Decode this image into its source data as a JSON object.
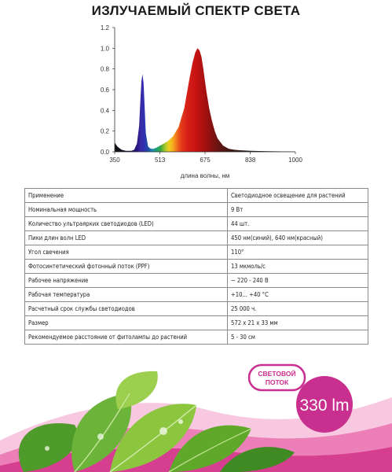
{
  "title": "ИЗЛУЧАЕМЫЙ СПЕКТР СВЕТА",
  "chart_data": {
    "type": "area",
    "xlabel": "длина волны, нм",
    "ylabel": "",
    "x_ticks": [
      350,
      513,
      675,
      838,
      1000
    ],
    "y_ticks": [
      "0.0",
      "0.2",
      "0.4",
      "0.6",
      "0.8",
      "1.0",
      "1.2"
    ],
    "xlim": [
      350,
      1000
    ],
    "ylim": [
      0,
      1.2
    ],
    "grid": false,
    "legend": "none",
    "series": [
      {
        "x": [
          350,
          360,
          375,
          390,
          410,
          420,
          430,
          438,
          442,
          446,
          450,
          454,
          458,
          462,
          470,
          480,
          490,
          500,
          520,
          540,
          560,
          580,
          600,
          620,
          630,
          640,
          648,
          655,
          662,
          670,
          680,
          690,
          700,
          710,
          720,
          740,
          760,
          780,
          800,
          840,
          900,
          1000
        ],
        "y": [
          0.09,
          0.05,
          0.02,
          0.01,
          0.01,
          0.02,
          0.08,
          0.25,
          0.48,
          0.68,
          0.75,
          0.66,
          0.42,
          0.18,
          0.05,
          0.03,
          0.03,
          0.04,
          0.07,
          0.1,
          0.15,
          0.24,
          0.42,
          0.72,
          0.86,
          0.96,
          1.0,
          0.98,
          0.92,
          0.78,
          0.58,
          0.42,
          0.3,
          0.2,
          0.13,
          0.06,
          0.03,
          0.02,
          0.015,
          0.01,
          0.005,
          0.002
        ]
      }
    ]
  },
  "specs": [
    {
      "label": "Применение",
      "value": "Светодиодное освещение для растений"
    },
    {
      "label": "Номинальная мощность",
      "value": "9 Вт"
    },
    {
      "label": "Количество ультраярких светодиодов (LED)",
      "value": "44 шт."
    },
    {
      "label": "Пики длин волн LED",
      "value": "450 нм(синий), 640 нм(красный)"
    },
    {
      "label": "Угол свечения",
      "value": "110°"
    },
    {
      "label": "Фотосинтетический фотонный поток (PPF)",
      "value": "13 мкмоль/с"
    },
    {
      "label": "Рабочее напряжение",
      "value": "~ 220 - 240 В"
    },
    {
      "label": "Рабочая температура",
      "value": "+10... +40 °С"
    },
    {
      "label": "Расчетный срок службы светодиодов",
      "value": "25 000 ч."
    },
    {
      "label": "Размер",
      "value": "572 x 21 x 33 мм"
    },
    {
      "label": "Рекомендуемое расстояние от фитолампы до растений",
      "value": "5 - 30 см"
    }
  ],
  "badge": {
    "line1": "СВЕТОВОЙ",
    "line2": "ПОТОК",
    "value": "330 lm"
  },
  "colors": {
    "badge_magenta": "#c92f8f",
    "badge_label": "#c92f8f",
    "leaf_green": "#5fa82a",
    "wave_pink": "#e7489a"
  }
}
